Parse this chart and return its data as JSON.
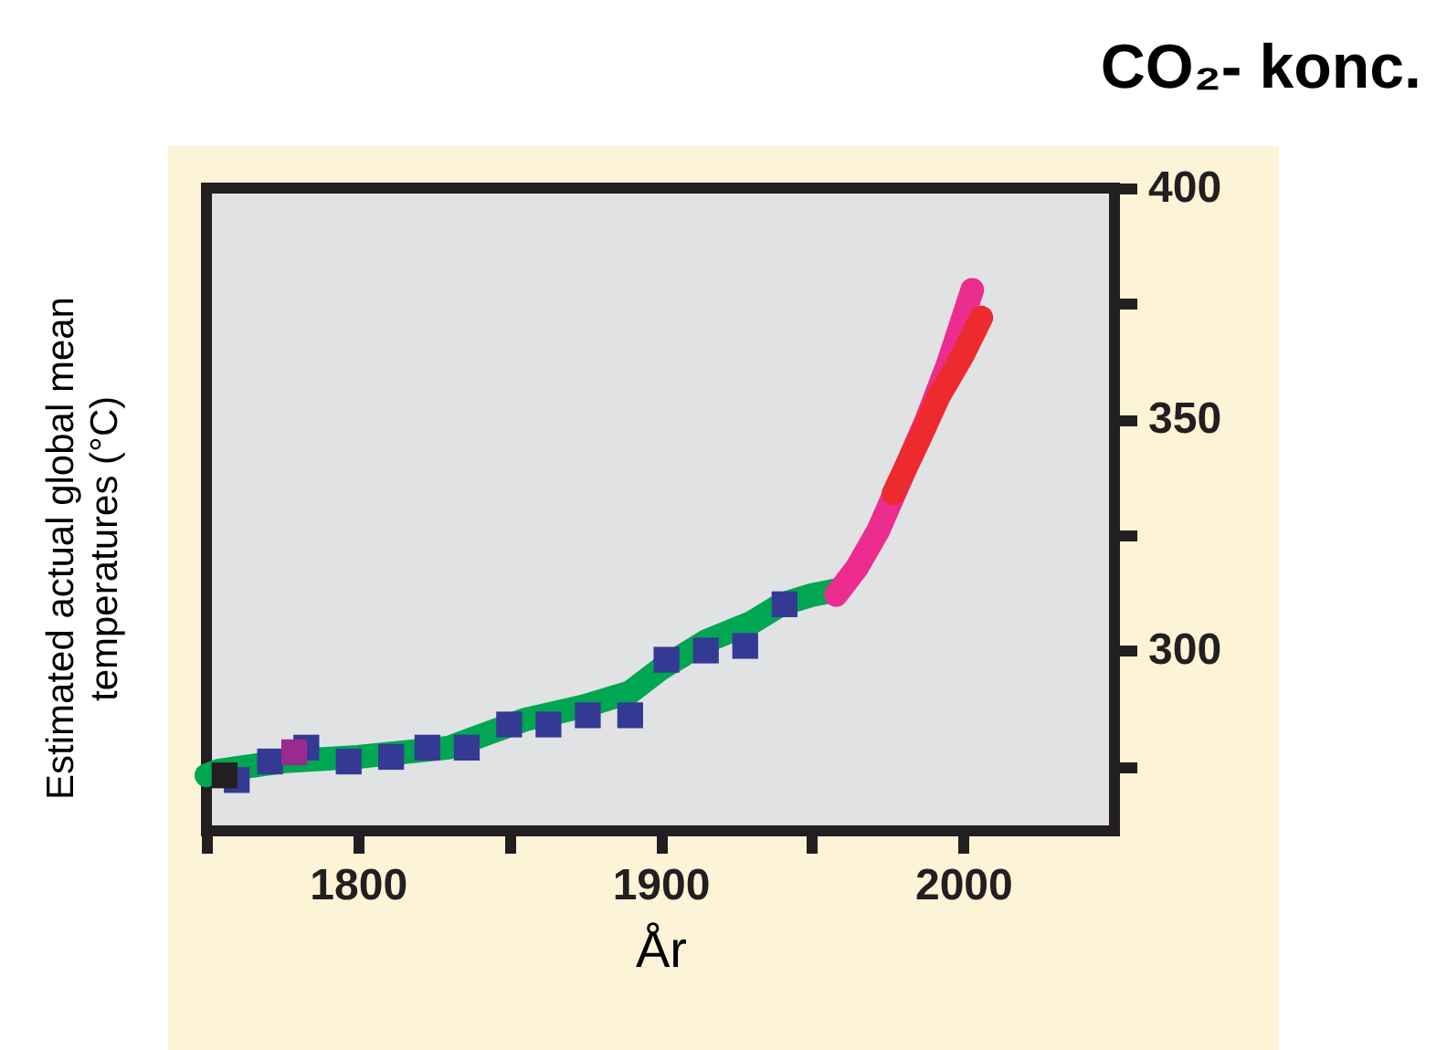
{
  "chart_data": {
    "type": "line",
    "title": "CO₂- konc.",
    "xlabel": "År",
    "ylabel": "Estimated actual global mean temperatures (°C)",
    "xlim": [
      1750,
      2050
    ],
    "xticks": [
      {
        "value": 1750,
        "label": null
      },
      1800,
      {
        "value": 1850,
        "label": null
      },
      1900,
      {
        "value": 1950,
        "label": null
      },
      2000
    ],
    "ylim": [
      261,
      400
    ],
    "yticks": [
      {
        "value": 275,
        "label": null
      },
      300,
      {
        "value": 325,
        "label": null
      },
      350,
      {
        "value": 375,
        "label": null
      },
      400
    ],
    "series": [
      {
        "marker": "none",
        "color": "#00a651",
        "x": [
          1750,
          1754,
          1775,
          1800,
          1830,
          1855,
          1875,
          1890,
          1900,
          1915,
          1930,
          1940,
          1950,
          1958
        ],
        "values": [
          273,
          274,
          276,
          277,
          279,
          285,
          288,
          291,
          296,
          302,
          306,
          310,
          312,
          313
        ]
      },
      {
        "marker": "none",
        "color": "#ec2d8f",
        "x": [
          1958,
          1965,
          1972,
          1980,
          1988,
          1995,
          2003
        ],
        "values": [
          312,
          318,
          326,
          338,
          350,
          362,
          378
        ]
      },
      {
        "marker": "none",
        "color": "#ed2b2f",
        "x": [
          1977,
          1985,
          1992,
          2000,
          2006
        ],
        "values": [
          334,
          345,
          355,
          364,
          372
        ]
      },
      {
        "type": "scatter",
        "marker": "square",
        "color": "#343a94",
        "x": [
          1760,
          1771,
          1783,
          1797,
          1811,
          1823,
          1836,
          1850,
          1863,
          1876,
          1890,
          1902,
          1915,
          1928,
          1941
        ],
        "values": [
          272,
          276,
          279,
          276,
          277,
          279,
          279,
          284,
          284,
          286,
          286,
          298,
          300,
          301,
          310
        ]
      },
      {
        "type": "scatter",
        "marker": "square",
        "color": "#9b2a8e",
        "x": [
          1779
        ],
        "values": [
          278
        ]
      },
      {
        "type": "scatter",
        "marker": "square",
        "color": "#231f20",
        "x": [
          1756
        ],
        "values": [
          273
        ]
      }
    ]
  }
}
